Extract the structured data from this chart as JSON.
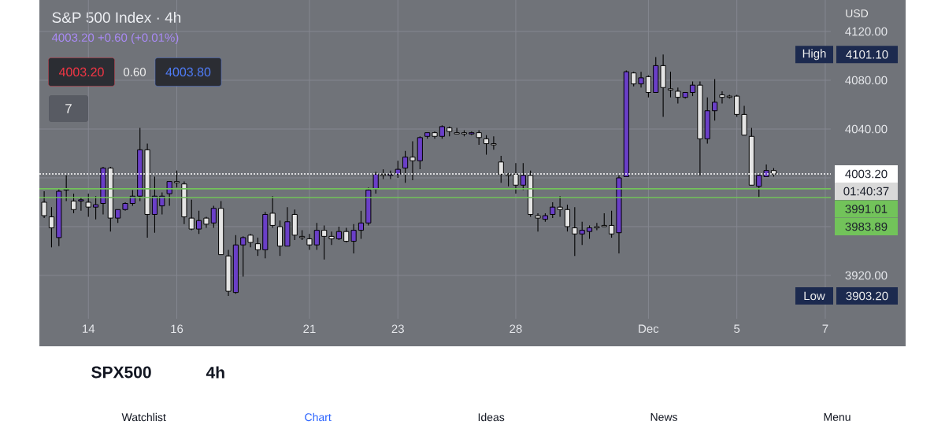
{
  "chart_data": {
    "type": "candlestick",
    "title": "S&P 500 Index · 4h",
    "categories": [
      null,
      null,
      null,
      null,
      null,
      null,
      "14",
      null,
      null,
      null,
      null,
      null,
      null,
      null,
      null,
      null,
      null,
      null,
      "16",
      null,
      null,
      null,
      null,
      null,
      null,
      null,
      null,
      null,
      null,
      null,
      null,
      null,
      null,
      null,
      null,
      null,
      "21",
      null,
      null,
      null,
      null,
      null,
      null,
      null,
      null,
      null,
      null,
      null,
      "23",
      null,
      null,
      null,
      null,
      null,
      null,
      null,
      null,
      null,
      null,
      null,
      null,
      null,
      null,
      null,
      "28",
      null,
      null,
      null,
      null,
      null,
      null,
      null,
      null,
      null,
      null,
      null,
      null,
      null,
      null,
      null,
      null,
      null,
      "Dec",
      null,
      null,
      null,
      null,
      null,
      null,
      null,
      null,
      null,
      null,
      null,
      "5",
      null,
      null,
      null,
      null,
      null,
      null,
      null,
      null,
      null,
      null,
      null,
      "7"
    ],
    "ohlc": [
      [
        3980,
        3989,
        3967,
        3969
      ],
      [
        3968,
        3976,
        3943,
        3959
      ],
      [
        3951,
        3991,
        3944,
        3989
      ],
      [
        3990,
        4002,
        3981,
        3991
      ],
      [
        3981,
        3987,
        3971,
        3974
      ],
      [
        3981,
        3984,
        3973,
        3982
      ],
      [
        3980,
        3987,
        3968,
        3976
      ],
      [
        3976,
        3985,
        3966,
        3978
      ],
      [
        3979,
        4009,
        3970,
        4008
      ],
      [
        4008,
        4009,
        3956,
        3967
      ],
      [
        3967,
        3974,
        3963,
        3974
      ],
      [
        3974,
        3980,
        3973,
        3979
      ],
      [
        3979,
        3990,
        3977,
        3985
      ],
      [
        3985,
        4041,
        3981,
        4023
      ],
      [
        4023,
        4028,
        3951,
        3970
      ],
      [
        3970,
        4001,
        3955,
        3985
      ],
      [
        3977,
        3988,
        3970,
        3985
      ],
      [
        3987,
        3997,
        3977,
        3997
      ],
      [
        3997,
        4006,
        3992,
        3996
      ],
      [
        3995,
        3997,
        3962,
        3968
      ],
      [
        3967,
        3982,
        3957,
        3958
      ],
      [
        3958,
        3973,
        3954,
        3965
      ],
      [
        3967,
        3968,
        3959,
        3962
      ],
      [
        3963,
        3977,
        3959,
        3975
      ],
      [
        3975,
        3981,
        3937,
        3937
      ],
      [
        3936,
        3941,
        3903.2,
        3907
      ],
      [
        3906,
        3953,
        3905,
        3945
      ],
      [
        3945,
        3952,
        3919,
        3951
      ],
      [
        3953,
        3954,
        3943,
        3947
      ],
      [
        3946,
        3951,
        3936,
        3941
      ],
      [
        3941,
        3972,
        3934,
        3970
      ],
      [
        3971,
        3985,
        3959,
        3961
      ],
      [
        3960,
        3965,
        3936,
        3944
      ],
      [
        3944,
        3976,
        3944,
        3964
      ],
      [
        3970,
        3974,
        3949,
        3953
      ],
      [
        3952,
        3957,
        3949,
        3951
      ],
      [
        3950,
        3954,
        3941,
        3945
      ],
      [
        3945,
        3963,
        3941,
        3957
      ],
      [
        3957,
        3961,
        3933,
        3952
      ],
      [
        3952,
        3956,
        3945,
        3950
      ],
      [
        3950,
        3960,
        3949,
        3956
      ],
      [
        3956,
        3959,
        3947,
        3948
      ],
      [
        3948,
        3962,
        3938,
        3957
      ],
      [
        3957,
        3973,
        3950,
        3963
      ],
      [
        3963,
        3992,
        3961,
        3990
      ],
      [
        3991,
        4005,
        3987,
        4003
      ],
      [
        4003,
        4007,
        3999,
        4002
      ],
      [
        4002,
        4006,
        3999,
        4003
      ],
      [
        4003,
        4014,
        4000,
        4007
      ],
      [
        4008,
        4022,
        3996,
        4017
      ],
      [
        4017,
        4030,
        3998,
        4014
      ],
      [
        4014,
        4034,
        4007,
        4033
      ],
      [
        4034,
        4037,
        4032,
        4037
      ],
      [
        4037,
        4038,
        4032,
        4034
      ],
      [
        4034,
        4043,
        4032,
        4042
      ],
      [
        4041,
        4042,
        4034,
        4038
      ],
      [
        4037,
        4041,
        4036,
        4036
      ],
      [
        4037,
        4039,
        4034,
        4036
      ],
      [
        4036,
        4038,
        4035,
        4037
      ],
      [
        4037,
        4039,
        4027,
        4033
      ],
      [
        4032,
        4035,
        4019,
        4028
      ],
      [
        4028,
        4034,
        4023,
        4027
      ],
      [
        4013,
        4018,
        3996,
        4003
      ],
      [
        4003,
        4004,
        3993,
        4002
      ],
      [
        4003,
        4012,
        3987,
        3994
      ],
      [
        3994,
        4012,
        3990,
        4002
      ],
      [
        4002,
        4006,
        3968,
        3970
      ],
      [
        3969,
        3971,
        3956,
        3967
      ],
      [
        3966,
        3971,
        3964,
        3969
      ],
      [
        3970,
        3980,
        3967,
        3976
      ],
      [
        3976,
        3985,
        3968,
        3974
      ],
      [
        3974,
        3978,
        3956,
        3960
      ],
      [
        3959,
        3976,
        3936,
        3954
      ],
      [
        3954,
        3964,
        3945,
        3957
      ],
      [
        3956,
        3961,
        3950,
        3959
      ],
      [
        3960,
        3963,
        3957,
        3959
      ],
      [
        3961,
        3971,
        3960,
        3960
      ],
      [
        3961,
        3973,
        3951,
        3954
      ],
      [
        3955,
        4002,
        3938,
        4000
      ],
      [
        4001,
        4088,
        4001,
        4087
      ],
      [
        4086,
        4087,
        4075,
        4077
      ],
      [
        4077,
        4087,
        4074,
        4082
      ],
      [
        4083,
        4084,
        4066,
        4070
      ],
      [
        4070,
        4099,
        4070,
        4092
      ],
      [
        4092,
        4101.1,
        4050,
        4074
      ],
      [
        4073,
        4087,
        4066,
        4072
      ],
      [
        4071,
        4074,
        4061,
        4066
      ],
      [
        4066,
        4070,
        4065,
        4070
      ],
      [
        4070,
        4079,
        4067,
        4076
      ],
      [
        4076,
        4079,
        4002,
        4032
      ],
      [
        4032,
        4066,
        4028,
        4055
      ],
      [
        4055,
        4081,
        4047,
        4062
      ],
      [
        4068,
        4071,
        4061,
        4066
      ],
      [
        4067,
        4068,
        4065,
        4066
      ],
      [
        4067,
        4068,
        4050,
        4052
      ],
      [
        4052,
        4059,
        4035,
        4035
      ],
      [
        4034,
        4041,
        3994,
        3994
      ],
      [
        3993,
        4003,
        3984,
        4002
      ],
      [
        4001,
        4011,
        4001,
        4006
      ],
      [
        4006,
        4008,
        4001,
        4003.2
      ],
      null,
      null,
      null,
      null,
      null,
      null,
      null
    ],
    "colors": [
      "#e4e4e4",
      "#e4e4e4",
      "#6a3fc7",
      "#6a3fc7",
      "#e4e4e4",
      "#6a3fc7",
      "#e4e4e4",
      "#6a3fc7",
      "#6a3fc7",
      "#e4e4e4",
      "#6a3fc7",
      "#6a3fc7",
      "#6a3fc7",
      "#6a3fc7",
      "#e4e4e4",
      "#6a3fc7",
      "#6a3fc7",
      "#6a3fc7",
      "#e4e4e4",
      "#e4e4e4",
      "#e4e4e4",
      "#6a3fc7",
      "#e4e4e4",
      "#6a3fc7",
      "#e4e4e4",
      "#e4e4e4",
      "#6a3fc7",
      "#6a3fc7",
      "#e4e4e4",
      "#e4e4e4",
      "#6a3fc7",
      "#e4e4e4",
      "#e4e4e4",
      "#6a3fc7",
      "#e4e4e4",
      "#e4e4e4",
      "#e4e4e4",
      "#6a3fc7",
      "#e4e4e4",
      "#e4e4e4",
      "#6a3fc7",
      "#e4e4e4",
      "#6a3fc7",
      "#6a3fc7",
      "#6a3fc7",
      "#6a3fc7",
      "#e4e4e4",
      "#6a3fc7",
      "#6a3fc7",
      "#6a3fc7",
      "#e4e4e4",
      "#6a3fc7",
      "#6a3fc7",
      "#e4e4e4",
      "#6a3fc7",
      "#e4e4e4",
      "#e4e4e4",
      "#e4e4e4",
      "#6a3fc7",
      "#e4e4e4",
      "#e4e4e4",
      "#e4e4e4",
      "#e4e4e4",
      "#e4e4e4",
      "#e4e4e4",
      "#6a3fc7",
      "#e4e4e4",
      "#e4e4e4",
      "#6a3fc7",
      "#6a3fc7",
      "#e4e4e4",
      "#e4e4e4",
      "#e4e4e4",
      "#6a3fc7",
      "#6a3fc7",
      "#e4e4e4",
      "#e4e4e4",
      "#e4e4e4",
      "#6a3fc7",
      "#6a3fc7",
      "#e4e4e4",
      "#6a3fc7",
      "#e4e4e4",
      "#6a3fc7",
      "#e4e4e4",
      "#e4e4e4",
      "#e4e4e4",
      "#6a3fc7",
      "#6a3fc7",
      "#e4e4e4",
      "#6a3fc7",
      "#6a3fc7",
      "#e4e4e4",
      "#e4e4e4",
      "#e4e4e4",
      "#e4e4e4",
      "#e4e4e4",
      "#6a3fc7",
      "#6a3fc7",
      "#e4e4e4",
      null,
      null,
      null,
      null,
      null,
      null,
      null
    ],
    "ylim": [
      3884.5,
      4145.8
    ],
    "yticks": [
      {
        "value": 3920,
        "label": "3920.00"
      },
      {
        "value": 3960,
        "label": null
      },
      {
        "value": 4000,
        "label": null
      },
      {
        "value": 4040,
        "label": "4040.00"
      },
      {
        "value": 4080,
        "label": "4080.00"
      },
      {
        "value": 4120,
        "label": "4120.00"
      }
    ],
    "grid": true,
    "ref_lines": [
      {
        "axis": "y",
        "value": 4003.2,
        "label": "4003.20",
        "color": "#ffffff",
        "line_style": "dotted"
      },
      {
        "axis": "y",
        "value": 3991.01,
        "label": "3991.01",
        "color": "#72c35a"
      },
      {
        "axis": "y",
        "value": 3983.89,
        "label": "3983.89",
        "color": "#72c35a"
      }
    ],
    "annotations": [
      "4003.20 +0.60 (+0.01%)",
      "4003.20",
      "0.60",
      "4003.80",
      "7",
      "USD",
      "High",
      "4101.10",
      "Low",
      "3903.20",
      "01:40:37",
      "SPX500",
      "4h",
      "Watchlist",
      "Chart",
      "Ideas",
      "News",
      "Menu"
    ]
  }
}
